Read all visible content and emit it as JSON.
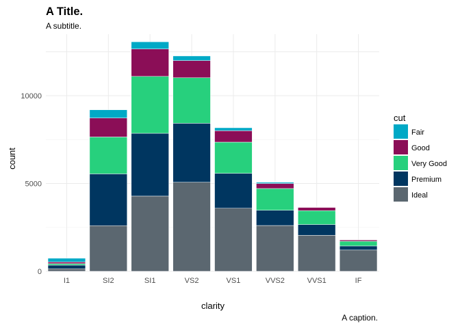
{
  "chart_data": {
    "type": "bar",
    "stacked": true,
    "title": "A Title.",
    "subtitle": "A subtitle.",
    "caption": "A caption.",
    "xlabel": "clarity",
    "ylabel": "count",
    "ylim": [
      0,
      13500
    ],
    "yticks": [
      0,
      5000,
      10000
    ],
    "ytick_labels": [
      "0",
      "5000",
      "10000"
    ],
    "grid": true,
    "legend_title": "cut",
    "legend_position": "right",
    "categories": [
      "I1",
      "SI2",
      "SI1",
      "VS2",
      "VS1",
      "VVS2",
      "VVS1",
      "IF"
    ],
    "series": [
      {
        "name": "Ideal",
        "color": "#5b6770",
        "values": [
          146,
          2598,
          4282,
          5071,
          3589,
          2606,
          2047,
          1212
        ]
      },
      {
        "name": "Premium",
        "color": "#003660",
        "values": [
          205,
          2949,
          3575,
          3357,
          1989,
          870,
          616,
          230
        ]
      },
      {
        "name": "Very Good",
        "color": "#27d07d",
        "values": [
          84,
          2100,
          3240,
          2591,
          1775,
          1235,
          789,
          268
        ]
      },
      {
        "name": "Good",
        "color": "#8b0e57",
        "values": [
          96,
          1081,
          1560,
          978,
          648,
          286,
          186,
          71
        ]
      },
      {
        "name": "Fair",
        "color": "#00a9c6",
        "values": [
          210,
          466,
          408,
          261,
          170,
          69,
          17,
          9
        ]
      }
    ],
    "legend_order": [
      "Fair",
      "Good",
      "Very Good",
      "Premium",
      "Ideal"
    ]
  }
}
